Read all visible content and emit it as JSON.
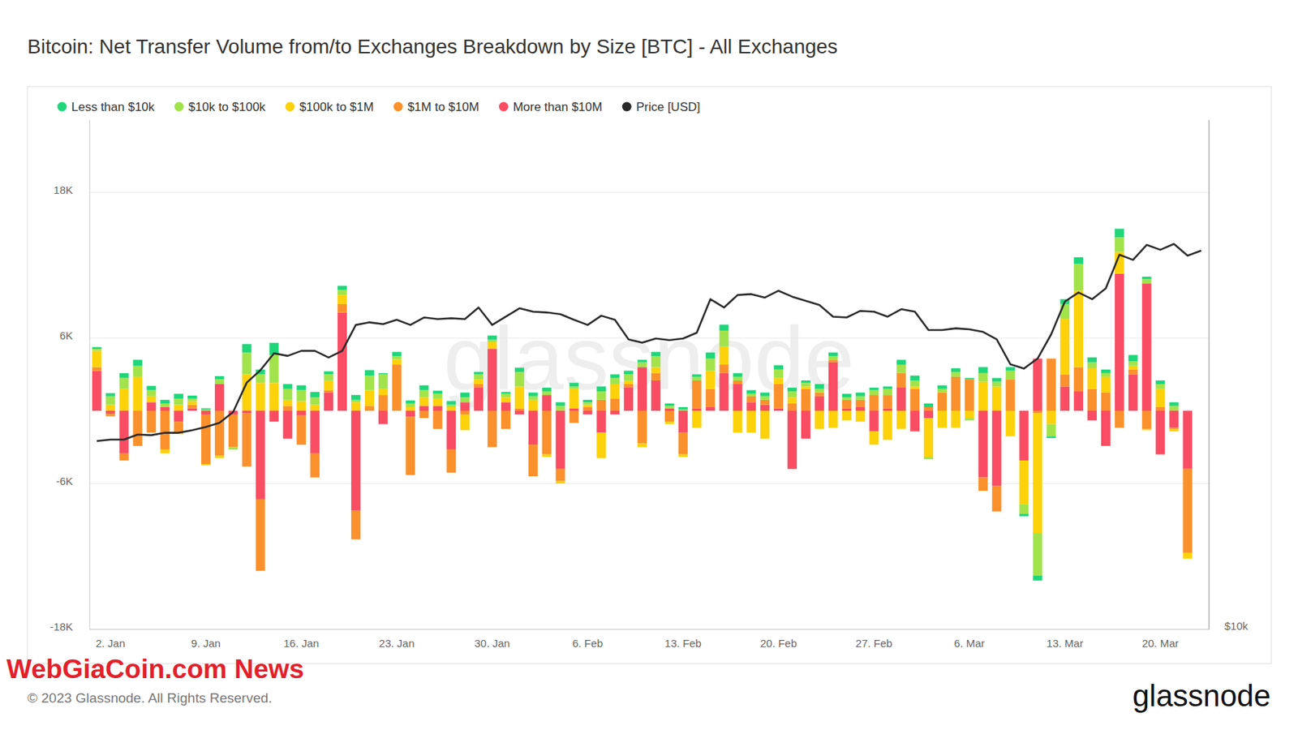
{
  "chart_data": {
    "type": "bar",
    "title": "Bitcoin: Net Transfer Volume from/to Exchanges Breakdown by Size [BTC] - All Exchanges",
    "categories": [
      null,
      "2. Jan",
      null,
      null,
      null,
      null,
      null,
      null,
      "9. Jan",
      null,
      null,
      null,
      null,
      null,
      null,
      "16. Jan",
      null,
      null,
      null,
      null,
      null,
      null,
      "23. Jan",
      null,
      null,
      null,
      null,
      null,
      null,
      "30. Jan",
      null,
      null,
      null,
      null,
      null,
      null,
      "6. Feb",
      null,
      null,
      null,
      null,
      null,
      null,
      "13. Feb",
      null,
      null,
      null,
      null,
      null,
      null,
      "20. Feb",
      null,
      null,
      null,
      null,
      null,
      null,
      "27. Feb",
      null,
      null,
      null,
      null,
      null,
      null,
      "6. Mar",
      null,
      null,
      null,
      null,
      null,
      null,
      "13. Mar",
      null,
      null,
      null,
      null,
      null,
      null,
      "20. Mar",
      null,
      null,
      null
    ],
    "series": [
      {
        "name": "Less than $10k",
        "color": "#1fd67a",
        "values": [
          150,
          250,
          400,
          500,
          350,
          300,
          400,
          250,
          100,
          250,
          0,
          700,
          400,
          1000,
          400,
          400,
          450,
          250,
          350,
          400,
          450,
          100,
          350,
          250,
          400,
          250,
          300,
          400,
          200,
          350,
          150,
          350,
          300,
          300,
          300,
          300,
          200,
          400,
          300,
          300,
          200,
          350,
          200,
          200,
          200,
          500,
          500,
          300,
          300,
          300,
          350,
          300,
          200,
          400,
          300,
          300,
          300,
          200,
          200,
          400,
          400,
          300,
          300,
          300,
          100,
          500,
          300,
          300,
          -200,
          -400,
          -150,
          400,
          550,
          400,
          300,
          700,
          500,
          200,
          300,
          300,
          0,
          null
        ]
      },
      {
        "name": "$10k to $100k",
        "color": "#a2e34b",
        "values": [
          150,
          700,
          900,
          900,
          500,
          300,
          500,
          200,
          100,
          400,
          -200,
          1800,
          700,
          2300,
          900,
          900,
          600,
          500,
          400,
          200,
          1200,
          1200,
          250,
          300,
          600,
          400,
          200,
          400,
          400,
          200,
          300,
          1200,
          300,
          300,
          400,
          200,
          200,
          700,
          500,
          500,
          400,
          900,
          200,
          100,
          300,
          1000,
          1300,
          300,
          200,
          300,
          700,
          500,
          300,
          300,
          300,
          200,
          300,
          400,
          500,
          700,
          500,
          -200,
          300,
          400,
          -200,
          700,
          400,
          700,
          -800,
          -3500,
          -1000,
          1200,
          2200,
          500,
          300,
          1200,
          400,
          350,
          400,
          400,
          0,
          null
        ]
      },
      {
        "name": "$100k to $1M",
        "color": "#fdd20a",
        "values": [
          1350,
          500,
          1800,
          2800,
          500,
          -300,
          500,
          300,
          -100,
          -200,
          0,
          3000,
          2300,
          2300,
          500,
          800,
          500,
          800,
          750,
          700,
          1300,
          500,
          450,
          300,
          700,
          600,
          300,
          -1300,
          400,
          550,
          400,
          1800,
          900,
          -200,
          -200,
          1600,
          200,
          -2100,
          1200,
          300,
          -300,
          500,
          -200,
          -200,
          -1400,
          1500,
          1500,
          -1800,
          -1800,
          -2300,
          500,
          500,
          200,
          -1500,
          -1400,
          -800,
          -900,
          -1100,
          -2400,
          -1500,
          200,
          -3200,
          -1400,
          -1400,
          -600,
          2400,
          2000,
          -2100,
          -3600,
          -9900,
          -1100,
          4600,
          6300,
          1700,
          1300,
          1800,
          300,
          -100,
          1500,
          -200,
          -500,
          null
        ]
      },
      {
        "name": "$1M to $10M",
        "color": "#fb912c",
        "values": [
          300,
          -200,
          -600,
          -2900,
          -1800,
          -3200,
          -1000,
          300,
          -4100,
          -3700,
          -2700,
          -4400,
          -5900,
          0,
          400,
          -2400,
          -2000,
          200,
          700,
          -2400,
          400,
          1300,
          3800,
          -4800,
          -600,
          -1500,
          -1900,
          -300,
          300,
          -3000,
          -1500,
          200,
          -2600,
          -3600,
          -1000,
          -1000,
          300,
          900,
          1000,
          300,
          -2700,
          600,
          -900,
          -1800,
          2300,
          1500,
          700,
          300,
          500,
          400,
          2000,
          600,
          1800,
          300,
          200,
          700,
          600,
          1300,
          1100,
          1200,
          1800,
          300,
          1500,
          2800,
          2600,
          -1100,
          -2100,
          2600,
          0,
          -200,
          4300,
          1000,
          2000,
          1800,
          1500,
          -1400,
          400,
          -1500,
          300,
          -100,
          -6900,
          null
        ]
      },
      {
        "name": "More than $10M",
        "color": "#fa4d64",
        "values": [
          3300,
          -250,
          -3500,
          0,
          700,
          300,
          -900,
          200,
          -300,
          2200,
          -300,
          -200,
          -7300,
          -900,
          -2300,
          -400,
          -3500,
          1500,
          8100,
          -8200,
          0,
          -1100,
          0,
          -500,
          400,
          400,
          -3200,
          700,
          1900,
          5100,
          700,
          -300,
          -2800,
          1300,
          -4800,
          200,
          -300,
          -1800,
          -300,
          1900,
          3600,
          2500,
          200,
          -1800,
          200,
          300,
          3100,
          2200,
          700,
          500,
          200,
          -4800,
          -2300,
          1200,
          4000,
          200,
          300,
          -1700,
          200,
          1900,
          -1700,
          -600,
          0,
          0,
          0,
          -5500,
          -6200,
          0,
          -4100,
          4300,
          0,
          2000,
          1600,
          -800,
          -2900,
          11300,
          3000,
          10500,
          -3600,
          -1400,
          -4800,
          null
        ]
      },
      {
        "name": "Price [USD]",
        "color": "#2b2b2b",
        "type": "line",
        "axis": "y2",
        "values": [
          16680,
          16750,
          16750,
          16980,
          16950,
          17060,
          17060,
          17180,
          17330,
          17530,
          18050,
          19560,
          20230,
          21180,
          21030,
          21320,
          21320,
          20940,
          21320,
          22880,
          23040,
          22930,
          23200,
          22880,
          23350,
          23250,
          23300,
          23250,
          23990,
          22880,
          23400,
          23940,
          23720,
          23670,
          23560,
          23200,
          22880,
          23460,
          23200,
          22000,
          21800,
          22050,
          21950,
          22050,
          22400,
          24540,
          23990,
          24820,
          24880,
          24650,
          25110,
          24710,
          24430,
          24150,
          23400,
          23350,
          23770,
          23720,
          23400,
          23880,
          23720,
          22560,
          22560,
          22670,
          22610,
          22450,
          22000,
          20560,
          20320,
          20880,
          22310,
          24380,
          24990,
          24540,
          25270,
          27690,
          27310,
          28450,
          28070,
          28520,
          27630,
          28010
        ]
      }
    ],
    "ylim": [
      -18000,
      24000
    ],
    "yticks": [
      {
        "value": -18000,
        "label": "-18K"
      },
      {
        "value": -6000,
        "label": "-6K"
      },
      {
        "value": 6000,
        "label": "6K"
      },
      {
        "value": 18000,
        "label": "18K"
      }
    ],
    "y2lim": [
      10000,
      40000
    ],
    "y2ticks": [
      {
        "value": 10000,
        "label": "$10k"
      }
    ],
    "log": "y2",
    "stacked": true,
    "grid": true,
    "legend": "top",
    "annotations": [
      "glassnode",
      "WebGiaCoin.com News",
      "© 2023 Glassnode. All Rights Reserved.",
      "glassnode"
    ]
  }
}
